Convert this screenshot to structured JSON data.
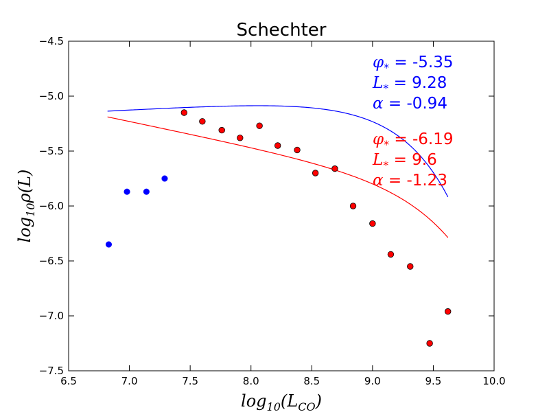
{
  "chart_data": {
    "type": "scatter",
    "title": "Schechter",
    "xlabel": "log10(LCO)",
    "ylabel": "log10ρ(L)",
    "xlim": [
      6.5,
      10.0
    ],
    "ylim": [
      -7.5,
      -4.5
    ],
    "x_ticks": [
      "6.5",
      "7.0",
      "7.5",
      "8.0",
      "8.5",
      "9.0",
      "9.5",
      "10.0"
    ],
    "y_ticks": [
      "−4.5",
      "−5.0",
      "−5.5",
      "−6.0",
      "−6.5",
      "−7.0",
      "−7.5"
    ],
    "grid": false,
    "series": [
      {
        "color": "#0000ff",
        "points": [
          [
            6.83,
            -6.35
          ],
          [
            6.98,
            -5.87
          ],
          [
            7.14,
            -5.87
          ],
          [
            7.29,
            -5.75
          ]
        ],
        "fit": {
          "phi_star": -5.35,
          "L_star": 9.28,
          "alpha": -0.94
        }
      },
      {
        "color": "#ff0000",
        "points": [
          [
            7.45,
            -5.15
          ],
          [
            7.6,
            -5.23
          ],
          [
            7.76,
            -5.31
          ],
          [
            7.91,
            -5.38
          ],
          [
            8.07,
            -5.27
          ],
          [
            8.22,
            -5.45
          ],
          [
            8.38,
            -5.49
          ],
          [
            8.53,
            -5.7
          ],
          [
            8.69,
            -5.66
          ],
          [
            8.84,
            -6.0
          ],
          [
            9.0,
            -6.16
          ],
          [
            9.15,
            -6.44
          ],
          [
            9.31,
            -6.55
          ],
          [
            9.47,
            -7.25
          ],
          [
            9.62,
            -6.96
          ]
        ],
        "fit": {
          "phi_star": -6.19,
          "L_star": 9.6,
          "alpha": -1.23
        }
      }
    ],
    "annotations": [
      {
        "symbol": "φ",
        "sub": "*",
        "text": " = -5.35",
        "color": "#0000ff"
      },
      {
        "symbol": "L",
        "sub": "*",
        "text": " = 9.28",
        "color": "#0000ff"
      },
      {
        "symbol": "α",
        "sub": "",
        "text": " = -0.94",
        "color": "#0000ff"
      },
      {
        "symbol": "φ",
        "sub": "*",
        "text": " = -6.19",
        "color": "#ff0000"
      },
      {
        "symbol": "L",
        "sub": "*",
        "text": " = 9.6",
        "color": "#ff0000"
      },
      {
        "symbol": "α",
        "sub": "",
        "text": " = -1.23",
        "color": "#ff0000"
      }
    ]
  }
}
